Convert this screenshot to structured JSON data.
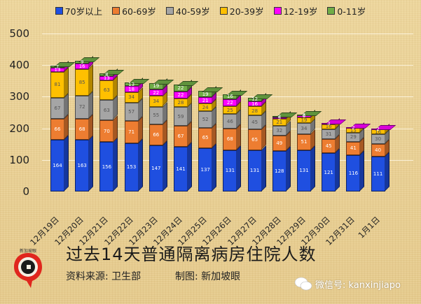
{
  "legend": [
    {
      "label": "70岁以上",
      "color": "#1f4fe0"
    },
    {
      "label": "60-69岁",
      "color": "#ed7d31"
    },
    {
      "label": "40-59岁",
      "color": "#a5a5a5"
    },
    {
      "label": "20-39岁",
      "color": "#ffc000"
    },
    {
      "label": "12-19岁",
      "color": "#ff00ff"
    },
    {
      "label": "0-11岁",
      "color": "#70ad47"
    }
  ],
  "y_ticks": [
    "0",
    "100",
    "200",
    "300",
    "400",
    "500"
  ],
  "footer": {
    "title": "过去14天普通隔离病房住院人数",
    "source": "资料来源:  卫生部",
    "credit": "制图:  新加坡眼",
    "wechat": "微信号: kanxinjiapo",
    "logo_text": "新加坡眼"
  },
  "chart_data": {
    "type": "bar",
    "stacked": true,
    "title": "过去14天普通隔离病房住院人数",
    "xlabel": "",
    "ylabel": "",
    "ylim": [
      0,
      500
    ],
    "y_ticks": [
      0,
      100,
      200,
      300,
      400,
      500
    ],
    "grid": true,
    "legend_position": "top",
    "categories": [
      "12月19日",
      "12月20日",
      "12月21日",
      "12月22日",
      "12月23日",
      "12月24日",
      "12月25日",
      "12月26日",
      "12月27日",
      "12月28日",
      "12月29日",
      "12月30日",
      "12月31日",
      "1月1日"
    ],
    "series": [
      {
        "name": "70岁以上",
        "color": "#1f4fe0",
        "values": [
          164,
          163,
          156,
          153,
          147,
          141,
          137,
          131,
          131,
          128,
          131,
          121,
          116,
          111
        ]
      },
      {
        "name": "60-69岁",
        "color": "#ed7d31",
        "values": [
          66,
          68,
          70,
          71,
          66,
          67,
          65,
          68,
          65,
          49,
          51,
          45,
          41,
          40
        ]
      },
      {
        "name": "40-59岁",
        "color": "#a5a5a5",
        "values": [
          67,
          72,
          63,
          57,
          55,
          59,
          52,
          46,
          45,
          32,
          34,
          31,
          29,
          30
        ]
      },
      {
        "name": "20-39岁",
        "color": "#ffc000",
        "values": [
          81,
          85,
          63,
          34,
          34,
          28,
          24,
          25,
          28,
          21,
          19,
          16,
          15,
          16
        ]
      },
      {
        "name": "12-19岁",
        "color": "#ff00ff",
        "values": [
          13,
          16,
          13,
          18,
          22,
          22,
          21,
          22,
          16,
          5,
          6,
          3,
          2,
          2
        ]
      },
      {
        "name": "0-11岁",
        "color": "#70ad47",
        "values": [
          7,
          9,
          8,
          13,
          19,
          22,
          19,
          16,
          12,
          3,
          3,
          0,
          0,
          0
        ]
      }
    ]
  }
}
